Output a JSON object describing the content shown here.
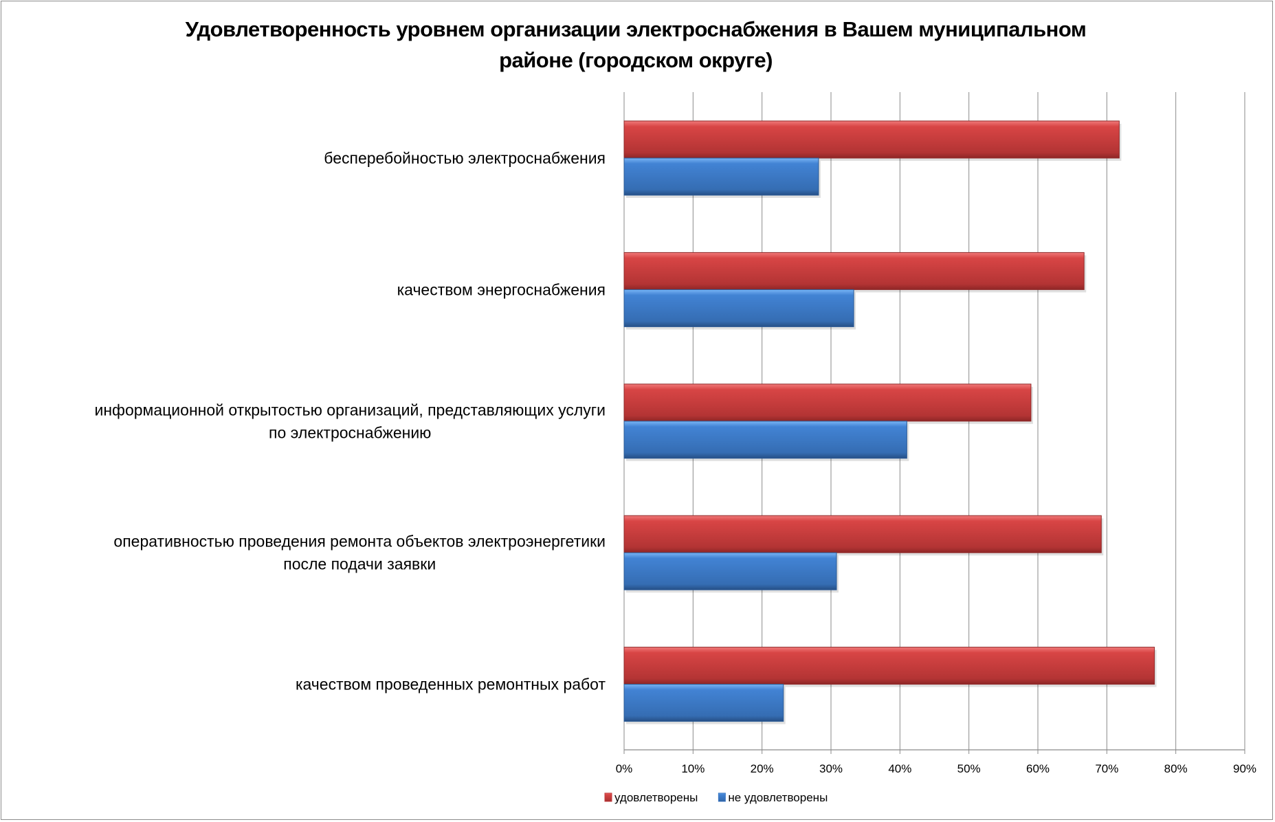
{
  "chart_data": {
    "type": "bar",
    "orientation": "horizontal",
    "title": "Удовлетворенность уровнем организации электроснабжения в Вашем муниципальном районе (городском округе)",
    "title_lines": [
      "Удовлетворенность уровнем организации электроснабжения в Вашем муниципальном",
      "районе (городском округе)"
    ],
    "categories": [
      [
        "бесперебойностью  электроснабжения"
      ],
      [
        "качеством энергоснабжения"
      ],
      [
        "информационной открытостью организаций, представляющих услуги",
        "по электроснабжению"
      ],
      [
        "оперативностью проведения ремонта объектов электроэнергетики",
        "после подачи заявки"
      ],
      [
        "качеством проведенных ремонтных работ"
      ]
    ],
    "series": [
      {
        "name": "удовлетворены",
        "color": "#c0393b",
        "values": [
          71.8,
          66.7,
          59.0,
          69.2,
          76.9
        ]
      },
      {
        "name": "не удовлетворены",
        "color": "#3b76c2",
        "values": [
          28.2,
          33.3,
          41.0,
          30.8,
          23.1
        ]
      }
    ],
    "xlim": [
      0,
      90
    ],
    "xticks": [
      "0%",
      "10%",
      "20%",
      "30%",
      "40%",
      "50%",
      "60%",
      "70%",
      "80%",
      "90%"
    ],
    "grid": true,
    "legend": "bottom",
    "xlabel": "",
    "ylabel": ""
  }
}
